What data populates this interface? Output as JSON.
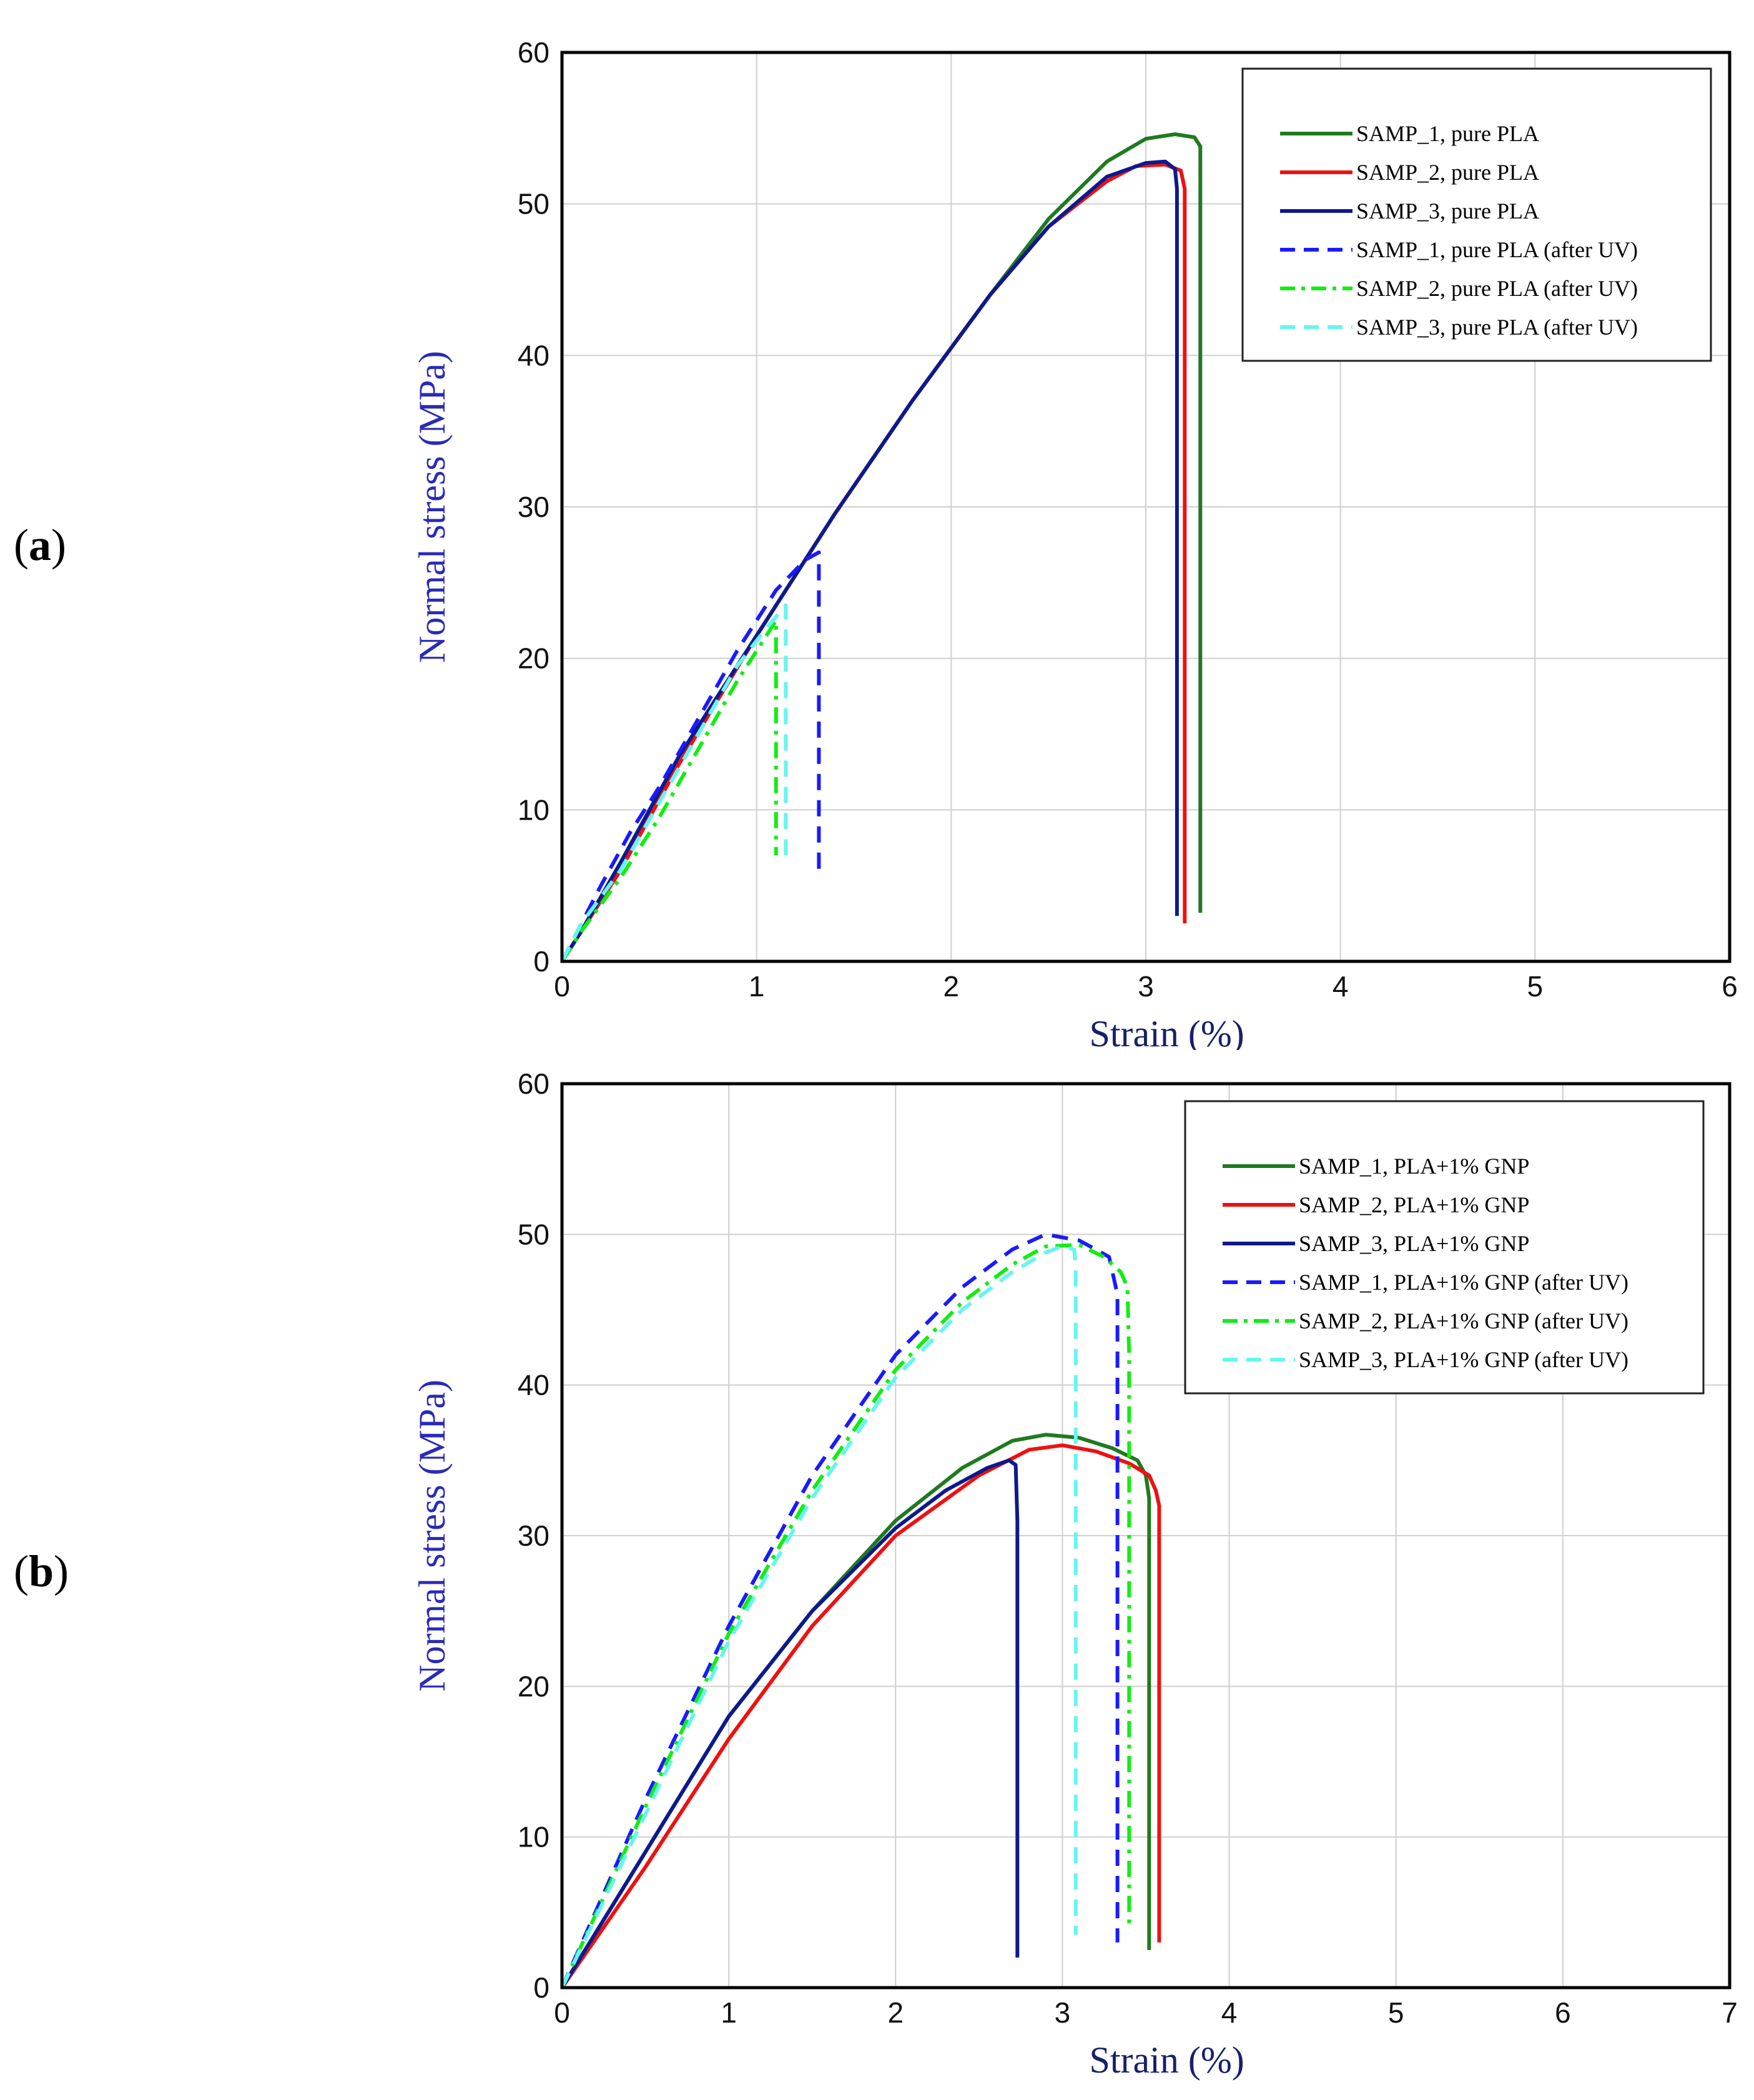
{
  "panels": [
    {
      "label": "a",
      "chart_data": {
        "type": "line",
        "title": "",
        "xlabel": "Strain (%)",
        "ylabel": "Normal stress (MPa)",
        "xlim": [
          0,
          6
        ],
        "ylim": [
          0,
          60
        ],
        "xticks": [
          0,
          1,
          2,
          3,
          4,
          5,
          6
        ],
        "yticks": [
          0,
          10,
          20,
          30,
          40,
          50,
          60
        ],
        "grid": true,
        "legend_position": "top-right",
        "series": [
          {
            "name": "SAMP_1, pure PLA",
            "color": "#1f7a1f",
            "dash": "solid",
            "x": [
              0,
              0.1,
              0.3,
              0.6,
              1.0,
              1.4,
              1.8,
              2.2,
              2.5,
              2.8,
              3.0,
              3.15,
              3.25,
              3.28,
              3.28
            ],
            "y": [
              0,
              2,
              6.5,
              13.5,
              21.5,
              29.5,
              37,
              44,
              49,
              52.8,
              54.3,
              54.6,
              54.4,
              53.8,
              3.2
            ]
          },
          {
            "name": "SAMP_2, pure PLA",
            "color": "#ee1111",
            "dash": "solid",
            "x": [
              0,
              0.1,
              0.3,
              0.6,
              1.0,
              1.4,
              1.8,
              2.2,
              2.5,
              2.8,
              2.95,
              3.1,
              3.18,
              3.2,
              3.2
            ],
            "y": [
              0,
              2,
              6,
              13,
              21.5,
              29.5,
              37,
              44,
              48.5,
              51.5,
              52.5,
              52.6,
              52.2,
              51,
              2.5
            ]
          },
          {
            "name": "SAMP_3, pure PLA",
            "color": "#0d1a8c",
            "dash": "solid",
            "x": [
              0,
              0.1,
              0.3,
              0.6,
              1.0,
              1.4,
              1.8,
              2.2,
              2.5,
              2.8,
              3.0,
              3.1,
              3.15,
              3.16,
              3.16
            ],
            "y": [
              0,
              2,
              6.5,
              13.5,
              21.5,
              29.5,
              37,
              44,
              48.5,
              51.8,
              52.7,
              52.8,
              52.3,
              51,
              3
            ]
          },
          {
            "name": "SAMP_1, pure PLA (after UV)",
            "color": "#1a1aff",
            "dash": "dash",
            "x": [
              0,
              0.1,
              0.2,
              0.35,
              0.5,
              0.7,
              0.9,
              1.1,
              1.25,
              1.32,
              1.32
            ],
            "y": [
              0,
              2.5,
              5,
              8.5,
              11.5,
              16,
              20.5,
              24.5,
              26.5,
              27,
              5.5
            ]
          },
          {
            "name": "SAMP_2, pure PLA (after UV)",
            "color": "#11ee11",
            "dash": "dashdot",
            "x": [
              0,
              0.1,
              0.3,
              0.5,
              0.7,
              0.9,
              1.05,
              1.1,
              1.1
            ],
            "y": [
              0,
              2,
              5.5,
              9.5,
              14,
              18.5,
              21.5,
              22.5,
              7
            ]
          },
          {
            "name": "SAMP_3, pure PLA (after UV)",
            "color": "#66f5f0",
            "dash": "dash",
            "x": [
              0,
              0.1,
              0.3,
              0.5,
              0.7,
              0.9,
              1.05,
              1.15,
              1.15
            ],
            "y": [
              0,
              2.5,
              6,
              10.5,
              15,
              19.5,
              22,
              23.5,
              7
            ]
          }
        ]
      }
    },
    {
      "label": "b",
      "chart_data": {
        "type": "line",
        "title": "",
        "xlabel": "Strain (%)",
        "ylabel": "Normal stress (MPa)",
        "xlim": [
          0,
          7
        ],
        "ylim": [
          0,
          60
        ],
        "xticks": [
          0,
          1,
          2,
          3,
          4,
          5,
          6,
          7
        ],
        "yticks": [
          0,
          10,
          20,
          30,
          40,
          50,
          60
        ],
        "grid": true,
        "legend_position": "top-right",
        "series": [
          {
            "name": "SAMP_1, PLA+1% GNP",
            "color": "#1f7a1f",
            "dash": "solid",
            "x": [
              0,
              0.5,
              1.0,
              1.5,
              2.0,
              2.4,
              2.7,
              2.9,
              3.1,
              3.3,
              3.45,
              3.5,
              3.52,
              3.52
            ],
            "y": [
              0,
              9,
              18,
              25,
              31,
              34.5,
              36.3,
              36.7,
              36.5,
              35.8,
              35,
              34,
              32.5,
              2.5
            ]
          },
          {
            "name": "SAMP_2, PLA+1% GNP",
            "color": "#ee1111",
            "dash": "solid",
            "x": [
              0,
              0.5,
              1.0,
              1.5,
              2.0,
              2.5,
              2.8,
              3.0,
              3.2,
              3.4,
              3.52,
              3.56,
              3.58,
              3.58
            ],
            "y": [
              0,
              8,
              16.5,
              24,
              30,
              34,
              35.7,
              36,
              35.6,
              34.8,
              34,
              33,
              32,
              3
            ]
          },
          {
            "name": "SAMP_3, PLA+1% GNP",
            "color": "#0d1a8c",
            "dash": "solid",
            "x": [
              0,
              0.5,
              1.0,
              1.5,
              2.0,
              2.3,
              2.55,
              2.68,
              2.72,
              2.73,
              2.73
            ],
            "y": [
              0,
              9,
              18,
              25,
              30.5,
              33,
              34.5,
              35,
              34.7,
              31,
              2
            ]
          },
          {
            "name": "SAMP_1, PLA+1% GNP (after UV)",
            "color": "#1a1aff",
            "dash": "dash",
            "x": [
              0,
              0.5,
              1.0,
              1.5,
              2.0,
              2.4,
              2.7,
              2.9,
              3.1,
              3.2,
              3.28,
              3.33,
              3.33
            ],
            "y": [
              0,
              12.5,
              24,
              34,
              42,
              46.5,
              49,
              50,
              49.6,
              49,
              48.5,
              46,
              3
            ]
          },
          {
            "name": "SAMP_2, PLA+1% GNP (after UV)",
            "color": "#11ee11",
            "dash": "dashdot",
            "x": [
              0,
              0.5,
              1.0,
              1.5,
              2.0,
              2.4,
              2.7,
              2.9,
              3.1,
              3.25,
              3.35,
              3.39,
              3.4,
              3.4
            ],
            "y": [
              0,
              12,
              23.5,
              33,
              41,
              45.5,
              48,
              49.2,
              49.3,
              48.5,
              47.5,
              46.5,
              42,
              4
            ]
          },
          {
            "name": "SAMP_3, PLA+1% GNP (after UV)",
            "color": "#66f5f0",
            "dash": "dash",
            "x": [
              0,
              0.5,
              1.0,
              1.5,
              2.0,
              2.4,
              2.7,
              2.9,
              3.0,
              3.07,
              3.08,
              3.08
            ],
            "y": [
              0,
              11.5,
              23,
              32.5,
              40.5,
              45,
              47.5,
              48.8,
              49.2,
              49,
              48,
              3.5
            ]
          }
        ]
      }
    }
  ]
}
